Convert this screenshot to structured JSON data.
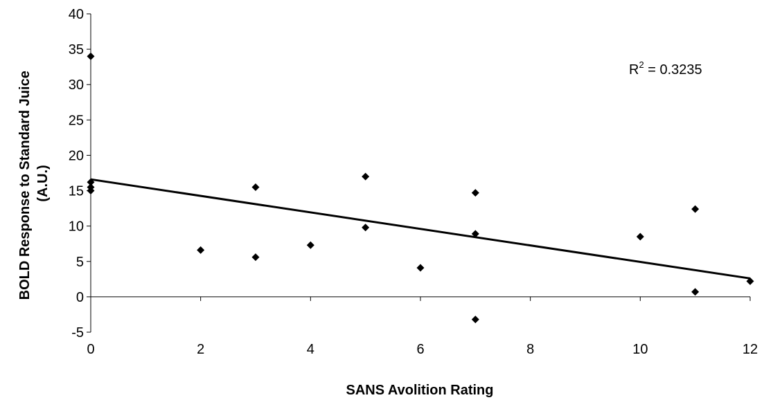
{
  "chart_data": {
    "type": "scatter",
    "title": "",
    "xlabel": "SANS Avolition Rating",
    "ylabel_lines": [
      "BOLD Response to Standard Juice",
      "(A.U.)"
    ],
    "xlim": [
      0,
      12
    ],
    "ylim": [
      -5,
      40
    ],
    "x_ticks": [
      0,
      2,
      4,
      6,
      8,
      10,
      12
    ],
    "y_ticks": [
      -5,
      0,
      5,
      10,
      15,
      20,
      25,
      30,
      35,
      40
    ],
    "grid": false,
    "legend": "none",
    "marker": "diamond",
    "marker_color": "#000000",
    "points": [
      {
        "x": 0,
        "y": 34.0
      },
      {
        "x": 0,
        "y": 16.2
      },
      {
        "x": 0,
        "y": 15.5
      },
      {
        "x": 0,
        "y": 15.0
      },
      {
        "x": 2,
        "y": 6.6
      },
      {
        "x": 3,
        "y": 15.5
      },
      {
        "x": 3,
        "y": 5.6
      },
      {
        "x": 4,
        "y": 7.3
      },
      {
        "x": 5,
        "y": 17.0
      },
      {
        "x": 5,
        "y": 9.8
      },
      {
        "x": 6,
        "y": 4.1
      },
      {
        "x": 7,
        "y": 14.7
      },
      {
        "x": 7,
        "y": 8.9
      },
      {
        "x": 7,
        "y": -3.2
      },
      {
        "x": 10,
        "y": 8.5
      },
      {
        "x": 11,
        "y": 12.4
      },
      {
        "x": 11,
        "y": 0.7
      },
      {
        "x": 12,
        "y": 2.2
      }
    ],
    "trendline": {
      "type": "linear",
      "x": [
        0,
        12
      ],
      "y": [
        16.6,
        2.6
      ]
    },
    "annotation": {
      "base": "R",
      "sup": "2",
      "rest": " = 0.3235"
    }
  }
}
